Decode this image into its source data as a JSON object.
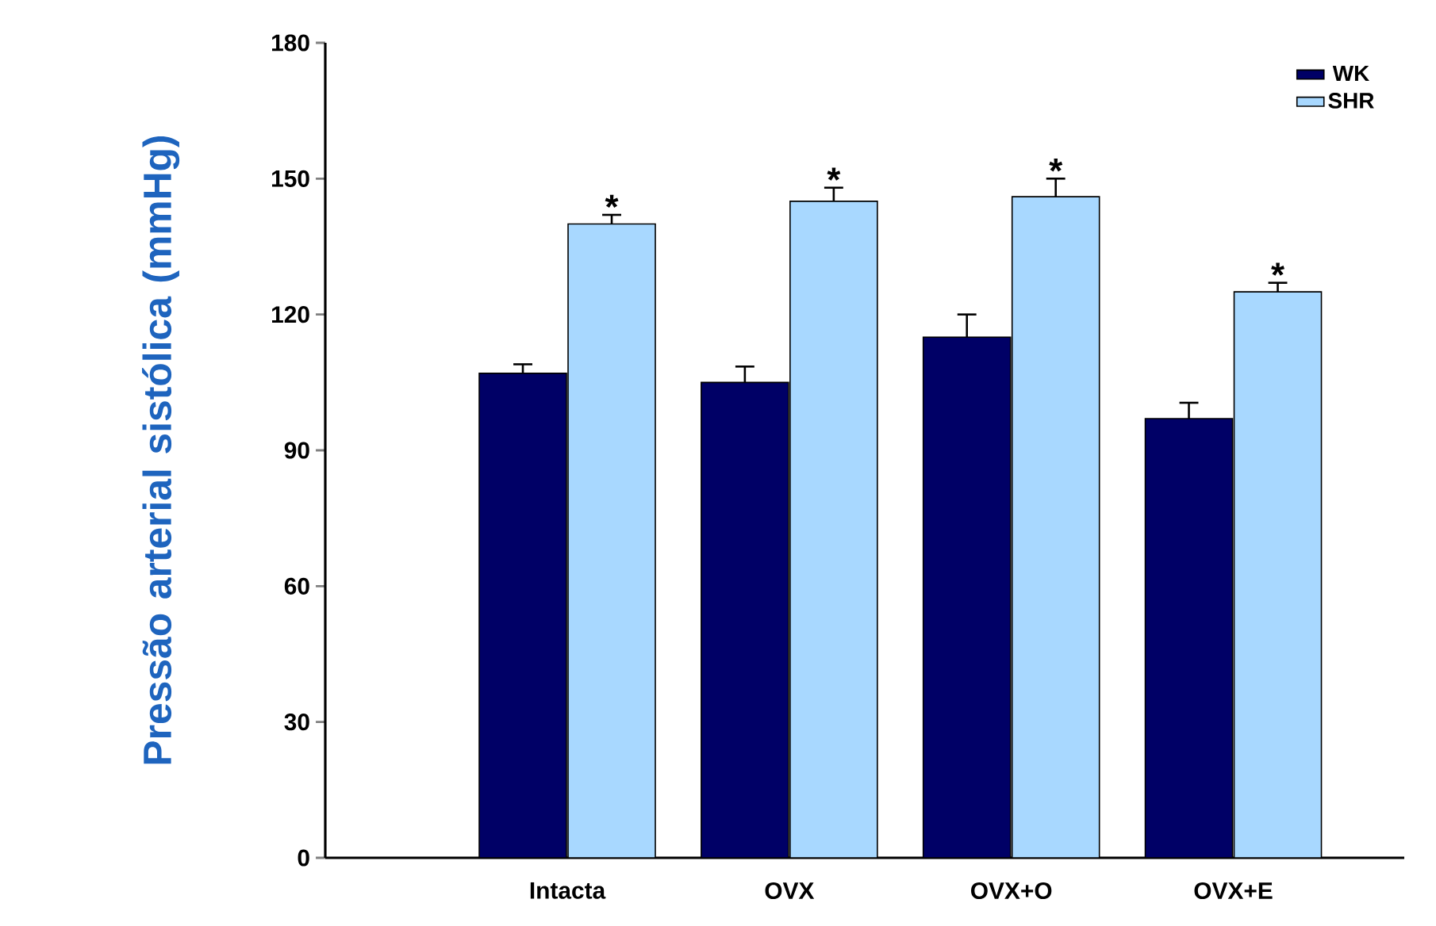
{
  "chart_data": {
    "type": "bar",
    "ylabel": "Pressão arterial sistólica (mmHg)",
    "categories": [
      "Intacta",
      "OVX",
      "OVX+O",
      "OVX+E"
    ],
    "series": [
      {
        "name": "WK",
        "color": "#000066",
        "values": [
          107,
          105,
          115,
          97
        ],
        "errors": [
          2,
          3.5,
          5,
          3.5
        ]
      },
      {
        "name": "SHR",
        "color": "#a8d8ff",
        "values": [
          140,
          145,
          146,
          125
        ],
        "errors": [
          2,
          3,
          4,
          2
        ]
      }
    ],
    "ylim": [
      0,
      180
    ],
    "yticks": [
      0,
      30,
      60,
      90,
      120,
      150,
      180
    ],
    "legend": "top right",
    "grid": false,
    "annotations": [
      "*",
      "*",
      "*",
      "*"
    ]
  }
}
